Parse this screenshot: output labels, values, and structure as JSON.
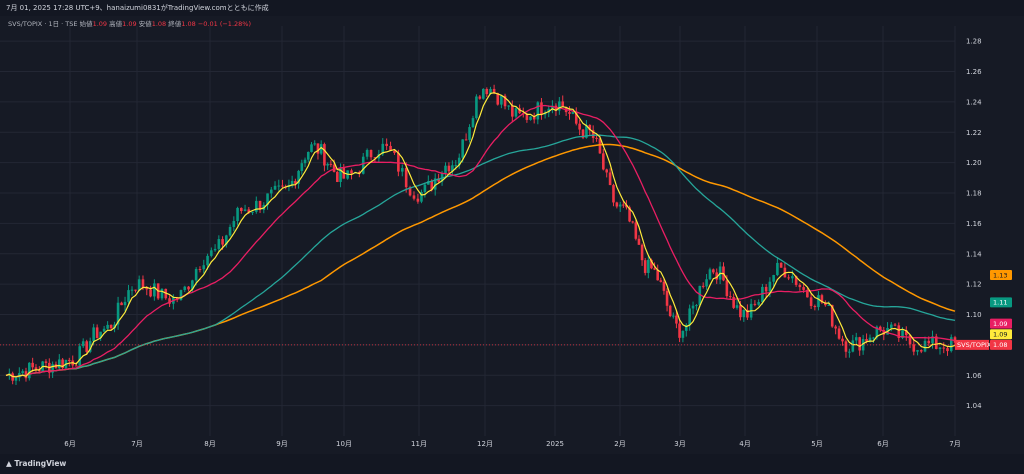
{
  "header": {
    "text": "7月 01, 2025 17:28 UTC+9、hanaizumi0831がTradingView.comとともに作成"
  },
  "legend": {
    "symbol": "SVS/TOPIX · 1日 · TSE",
    "open_label": "始値",
    "open": "1.09",
    "high_label": "高値",
    "high": "1.09",
    "low_label": "安値",
    "low": "1.08",
    "close_label": "終値",
    "close": "1.08",
    "change": "−0.01 (−1.28%)"
  },
  "footer": {
    "logo_text": "TradingView"
  },
  "colors": {
    "background": "#161a25",
    "up": "#089981",
    "down": "#f23645",
    "ma_fast": "#ffeb3b",
    "ma_mid": "#e91e63",
    "ma_slow": "#26a69a",
    "ma_long": "#ff9800"
  },
  "chart_data": {
    "type": "candlestick",
    "x_tick_labels": [
      "6月",
      "7月",
      "8月",
      "9月",
      "10月",
      "11月",
      "12月",
      "2025",
      "2月",
      "3月",
      "4月",
      "5月",
      "6月",
      "7月"
    ],
    "y_tick_labels": [
      "1.04",
      "1.06",
      "1.08",
      "1.10",
      "1.12",
      "1.14",
      "1.16",
      "1.18",
      "1.20",
      "1.22",
      "1.24",
      "1.26",
      "1.28"
    ],
    "ylim": [
      1.02,
      1.29
    ],
    "grid": true,
    "price_tags": [
      {
        "label": "1.13",
        "value": 1.126,
        "color": "#ff9800",
        "text_color": "#131722"
      },
      {
        "label": "1.11",
        "value": 1.108,
        "color": "#089981",
        "text_color": "#ffffff"
      },
      {
        "label": "1.09",
        "value": 1.094,
        "color": "#e91e63",
        "text_color": "#ffffff"
      },
      {
        "label": "1.09",
        "value": 1.087,
        "color": "#ffeb3b",
        "text_color": "#131722"
      },
      {
        "label": "1.08",
        "value": 1.08,
        "color": "#f23645",
        "text_color": "#ffffff",
        "name": "SVS/TOPIX"
      }
    ],
    "current_price": 1.08,
    "series": [
      {
        "name": "close_keypoints",
        "x_month_index": [
          0,
          0.5,
          1,
          1.5,
          2,
          2.5,
          3,
          3.5,
          4,
          4.5,
          5,
          5.5,
          6,
          6.5,
          7,
          7.5,
          8,
          8.5,
          9,
          9.5,
          10,
          10.5,
          11,
          11.5,
          12,
          12.5,
          13
        ],
        "values": [
          1.07,
          1.09,
          1.12,
          1.11,
          1.14,
          1.17,
          1.18,
          1.21,
          1.19,
          1.21,
          1.18,
          1.2,
          1.25,
          1.23,
          1.24,
          1.22,
          1.17,
          1.13,
          1.09,
          1.13,
          1.1,
          1.13,
          1.11,
          1.08,
          1.09,
          1.08,
          1.08
        ]
      },
      {
        "name": "ma_fast",
        "color": "#ffeb3b"
      },
      {
        "name": "ma_mid",
        "color": "#e91e63"
      },
      {
        "name": "ma_slow",
        "color": "#26a69a"
      },
      {
        "name": "ma_long",
        "color": "#ff9800"
      }
    ]
  }
}
